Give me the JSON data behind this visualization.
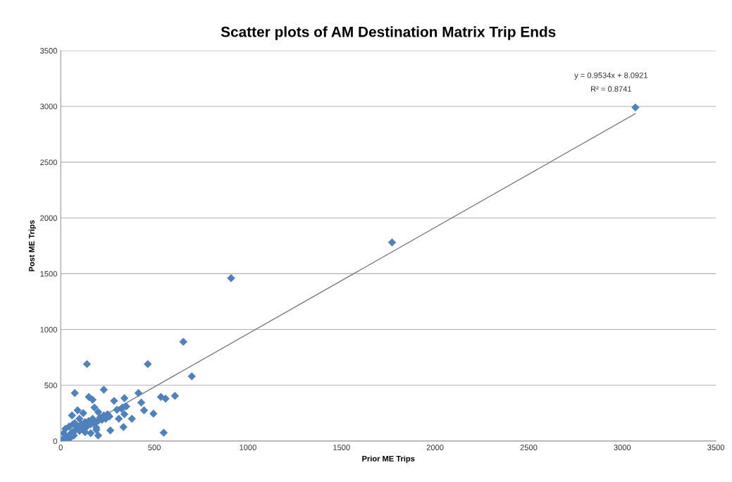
{
  "chart_data": {
    "type": "scatter",
    "title": "Scatter plots of AM Destination Matrix Trip Ends",
    "xlabel": "Prior ME Trips",
    "ylabel": "Post ME Trips",
    "xlim": [
      0,
      3500
    ],
    "ylim": [
      0,
      3500
    ],
    "xticks": [
      0,
      500,
      1000,
      1500,
      2000,
      2500,
      3000,
      3500
    ],
    "yticks": [
      0,
      500,
      1000,
      1500,
      2000,
      2500,
      3000,
      3500
    ],
    "grid": "y",
    "series": [
      {
        "color": "#4f81bd",
        "marker": "diamond",
        "x": [
          3070,
          1770,
          910,
          655,
          140,
          465,
          700,
          550,
          75,
          230,
          150,
          170,
          285,
          340,
          415,
          430,
          445,
          495,
          535,
          560,
          610,
          265,
          335,
          325,
          340,
          380,
          60,
          90,
          10,
          30,
          40,
          50,
          60,
          70,
          80,
          90,
          100,
          110,
          120,
          130,
          140,
          150,
          160,
          170,
          180,
          190,
          200,
          210,
          220,
          230,
          240,
          250,
          260,
          15,
          25,
          45,
          75,
          100,
          130,
          160,
          190,
          200,
          5,
          55,
          65,
          120,
          300,
          310,
          330,
          350,
          180,
          200
        ],
        "values": [
          2990,
          1780,
          1460,
          890,
          690,
          690,
          580,
          75,
          430,
          460,
          395,
          370,
          360,
          385,
          430,
          345,
          275,
          245,
          395,
          380,
          405,
          95,
          125,
          290,
          240,
          200,
          230,
          275,
          5,
          40,
          20,
          60,
          80,
          50,
          100,
          120,
          90,
          150,
          110,
          170,
          130,
          180,
          150,
          200,
          160,
          120,
          180,
          210,
          190,
          230,
          200,
          240,
          220,
          70,
          110,
          130,
          160,
          200,
          80,
          70,
          100,
          50,
          10,
          35,
          150,
          250,
          280,
          200,
          300,
          310,
          300,
          260
        ]
      },
      {
        "type": "line",
        "color": "#7f7f7f",
        "marker": "none",
        "x": [
          0,
          3070
        ],
        "values": [
          8,
          2935
        ]
      }
    ],
    "annotations": [
      "y = 0.9534x + 8.0921",
      "R² = 0.8741"
    ]
  }
}
